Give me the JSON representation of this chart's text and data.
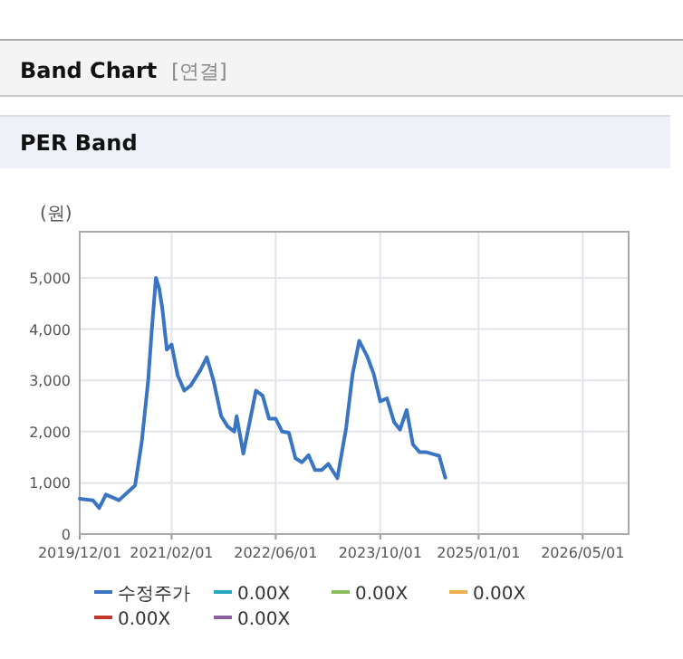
{
  "chart_data": {
    "type": "line",
    "title": "Band Chart",
    "subtitle": "[연결]",
    "annotations": [
      "PER Band"
    ],
    "ylabel": "(원)",
    "xlim": [
      "2019-12-01",
      "2026-12-01"
    ],
    "ylim": [
      0,
      5900
    ],
    "xticks": [
      {
        "value": "2019-12-01",
        "label": "2019/12/01"
      },
      {
        "value": "2021-02-01",
        "label": "2021/02/01"
      },
      {
        "value": "2022-06-01",
        "label": "2022/06/01"
      },
      {
        "value": "2023-10-01",
        "label": "2023/10/01"
      },
      {
        "value": "2025-01-01",
        "label": "2025/01/01"
      },
      {
        "value": "2026-05-01",
        "label": "2026/05/01"
      }
    ],
    "yticks": [
      0,
      {
        "value": 1000,
        "label": "1,000"
      },
      {
        "value": 2000,
        "label": "2,000"
      },
      {
        "value": 3000,
        "label": "3,000"
      },
      {
        "value": 4000,
        "label": "4,000"
      },
      {
        "value": 5000,
        "label": "5,000"
      }
    ],
    "grid": true,
    "legend": "bottom",
    "marker": "none",
    "line_style": "solid",
    "x": [
      "2019-12-01",
      "2020-02-01",
      "2020-03-01",
      "2020-04-01",
      "2020-06-01",
      "2020-07-15",
      "2020-08-15",
      "2020-09-15",
      "2020-10-15",
      "2020-11-01",
      "2020-11-20",
      "2020-12-05",
      "2020-12-20",
      "2021-01-10",
      "2021-02-01",
      "2021-03-01",
      "2021-04-01",
      "2021-05-01",
      "2021-06-15",
      "2021-07-15",
      "2021-08-15",
      "2021-09-20",
      "2021-10-20",
      "2021-11-20",
      "2021-12-01",
      "2022-01-01",
      "2022-03-01",
      "2022-04-01",
      "2022-05-01",
      "2022-06-01",
      "2022-07-01",
      "2022-08-01",
      "2022-09-01",
      "2022-10-01",
      "2022-11-01",
      "2022-12-01",
      "2023-01-01",
      "2023-02-01",
      "2023-03-15",
      "2023-04-25",
      "2023-05-25",
      "2023-06-25",
      "2023-08-01",
      "2023-09-01",
      "2023-10-01",
      "2023-11-01",
      "2023-12-05",
      "2024-01-01",
      "2024-02-01",
      "2024-03-01",
      "2024-04-01",
      "2024-05-01",
      "2024-06-20",
      "2024-07-01",
      "2024-07-30"
    ],
    "series": [
      {
        "name": "수정주가",
        "color": "#3a75c4",
        "values": [
          690,
          660,
          510,
          770,
          660,
          830,
          950,
          1800,
          3000,
          4000,
          5000,
          4800,
          4400,
          3600,
          3700,
          3100,
          2800,
          2900,
          3200,
          3450,
          3000,
          2300,
          2100,
          2000,
          2300,
          1570,
          2800,
          2700,
          2250,
          2250,
          2000,
          1980,
          1480,
          1400,
          1540,
          1250,
          1250,
          1370,
          1090,
          2070,
          3120,
          3770,
          3470,
          3120,
          2590,
          2650,
          2180,
          2040,
          2420,
          1750,
          1600,
          1600,
          1540,
          1530,
          1100
        ]
      },
      {
        "name": "0.00X",
        "color": "#26a9c0",
        "values": [
          null,
          null,
          null,
          null,
          null,
          null,
          null,
          null,
          null,
          null,
          null,
          null,
          null,
          null,
          null,
          null,
          null,
          null,
          null,
          null,
          null,
          null,
          null,
          null,
          null,
          null,
          null,
          null,
          null,
          null,
          null,
          null,
          null,
          null,
          null,
          null,
          null,
          null,
          null,
          null,
          null,
          null,
          null,
          null,
          null,
          null,
          null,
          null,
          null,
          null,
          null,
          null,
          null,
          null,
          null
        ]
      },
      {
        "name": "0.00X",
        "color": "#8cbd5a",
        "values": [
          null,
          null,
          null,
          null,
          null,
          null,
          null,
          null,
          null,
          null,
          null,
          null,
          null,
          null,
          null,
          null,
          null,
          null,
          null,
          null,
          null,
          null,
          null,
          null,
          null,
          null,
          null,
          null,
          null,
          null,
          null,
          null,
          null,
          null,
          null,
          null,
          null,
          null,
          null,
          null,
          null,
          null,
          null,
          null,
          null,
          null,
          null,
          null,
          null,
          null,
          null,
          null,
          null,
          null,
          null
        ]
      },
      {
        "name": "0.00X",
        "color": "#f0b050",
        "values": [
          null,
          null,
          null,
          null,
          null,
          null,
          null,
          null,
          null,
          null,
          null,
          null,
          null,
          null,
          null,
          null,
          null,
          null,
          null,
          null,
          null,
          null,
          null,
          null,
          null,
          null,
          null,
          null,
          null,
          null,
          null,
          null,
          null,
          null,
          null,
          null,
          null,
          null,
          null,
          null,
          null,
          null,
          null,
          null,
          null,
          null,
          null,
          null,
          null,
          null,
          null,
          null,
          null,
          null,
          null
        ]
      },
      {
        "name": "0.00X",
        "color": "#c0392b",
        "values": [
          null,
          null,
          null,
          null,
          null,
          null,
          null,
          null,
          null,
          null,
          null,
          null,
          null,
          null,
          null,
          null,
          null,
          null,
          null,
          null,
          null,
          null,
          null,
          null,
          null,
          null,
          null,
          null,
          null,
          null,
          null,
          null,
          null,
          null,
          null,
          null,
          null,
          null,
          null,
          null,
          null,
          null,
          null,
          null,
          null,
          null,
          null,
          null,
          null,
          null,
          null,
          null,
          null,
          null,
          null
        ]
      },
      {
        "name": "0.00X",
        "color": "#8e5ea2",
        "values": [
          null,
          null,
          null,
          null,
          null,
          null,
          null,
          null,
          null,
          null,
          null,
          null,
          null,
          null,
          null,
          null,
          null,
          null,
          null,
          null,
          null,
          null,
          null,
          null,
          null,
          null,
          null,
          null,
          null,
          null,
          null,
          null,
          null,
          null,
          null,
          null,
          null,
          null,
          null,
          null,
          null,
          null,
          null,
          null,
          null,
          null,
          null,
          null,
          null,
          null,
          null,
          null,
          null,
          null,
          null
        ]
      }
    ]
  }
}
